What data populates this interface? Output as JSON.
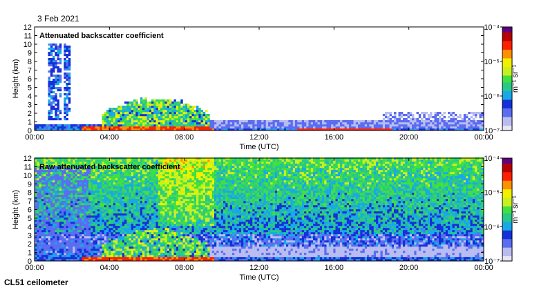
{
  "date": "3 Feb 2021",
  "instrument": "CL51 ceilometer",
  "colors": {
    "colormap": [
      "#e6e6f5",
      "#b8bcf0",
      "#5a6cf0",
      "#1530d8",
      "#18a8e8",
      "#28c888",
      "#40e040",
      "#c8f020",
      "#f0f000",
      "#ff9000",
      "#ff2000",
      "#b80000",
      "#600080"
    ]
  },
  "chart_data": [
    {
      "type": "heatmap",
      "title": "Attenuated backscatter coefficient",
      "xlabel": "Time (UTC)",
      "ylabel": "Height (km)",
      "x_ticks": [
        "00:00",
        "04:00",
        "08:00",
        "12:00",
        "16:00",
        "20:00",
        "00:00"
      ],
      "y_ticks": [
        "0",
        "1",
        "2",
        "3",
        "4",
        "5",
        "6",
        "7",
        "8",
        "9",
        "10",
        "11",
        "12"
      ],
      "ylim": [
        0,
        12
      ],
      "xlim_hours": [
        0,
        24
      ],
      "colorbar": {
        "unit": "m⁻¹ sr⁻¹",
        "ticks": [
          "10⁻⁷",
          "10⁻⁶",
          "10⁻⁵",
          "10⁻⁴"
        ],
        "log_range": [
          -7,
          -4
        ]
      }
    },
    {
      "type": "heatmap",
      "title": "Raw attenuated backscatter coefficient",
      "xlabel": "Time (UTC)",
      "ylabel": "Height (km)",
      "x_ticks": [
        "00:00",
        "04:00",
        "08:00",
        "12:00",
        "16:00",
        "20:00",
        "00:00"
      ],
      "y_ticks": [
        "0",
        "1",
        "2",
        "3",
        "4",
        "5",
        "6",
        "7",
        "8",
        "9",
        "10",
        "11",
        "12"
      ],
      "ylim": [
        0,
        12
      ],
      "xlim_hours": [
        0,
        24
      ],
      "colorbar": {
        "unit": "m⁻¹ sr⁻¹",
        "ticks": [
          "10⁻⁷",
          "10⁻⁶",
          "10⁻⁵",
          "10⁻⁴"
        ],
        "log_range": [
          -7,
          -4
        ]
      }
    }
  ]
}
